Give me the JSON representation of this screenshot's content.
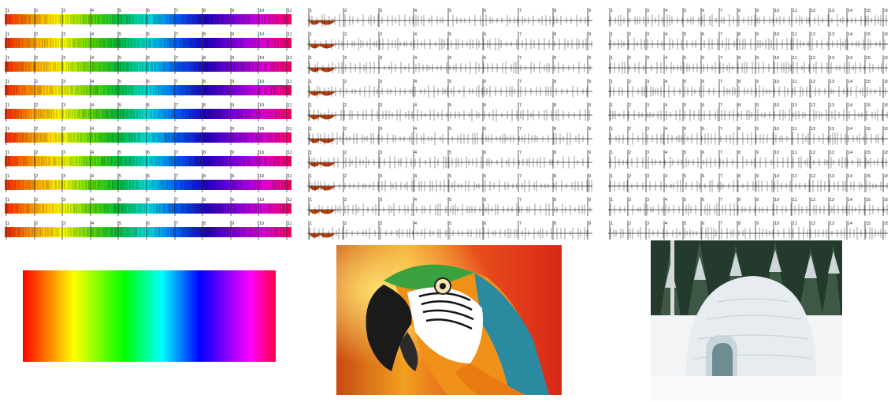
{
  "strip_panels": [
    {
      "id": "panel-a",
      "style": "full-gradient",
      "rows": 10,
      "tick_labels": [
        "1",
        "2",
        "3",
        "4",
        "5",
        "6",
        "7",
        "8",
        "9",
        "10",
        "11"
      ]
    },
    {
      "id": "panel-b",
      "style": "sparse-spectrum",
      "rows": 10,
      "tick_labels": [
        "1",
        "2",
        "3",
        "4",
        "5",
        "6",
        "7",
        "8",
        "9"
      ]
    },
    {
      "id": "panel-c",
      "style": "sparse-spectrum",
      "rows": 10,
      "tick_labels": [
        "1",
        "2",
        "3",
        "4",
        "5",
        "6",
        "7",
        "8",
        "9",
        "10",
        "11",
        "12",
        "13",
        "14",
        "15",
        "16"
      ]
    }
  ],
  "gradient_swatch": {
    "colors": [
      "#ff0000",
      "#ff8000",
      "#ffff00",
      "#80ff00",
      "#00ff00",
      "#00ffff",
      "#0000ff",
      "#8000ff",
      "#ff00ff",
      "#ff0040"
    ]
  },
  "photos": [
    {
      "id": "photo-parrot",
      "subject": "macaw-parrot"
    },
    {
      "id": "photo-igloo",
      "subject": "igloo-in-snowy-forest"
    }
  ]
}
